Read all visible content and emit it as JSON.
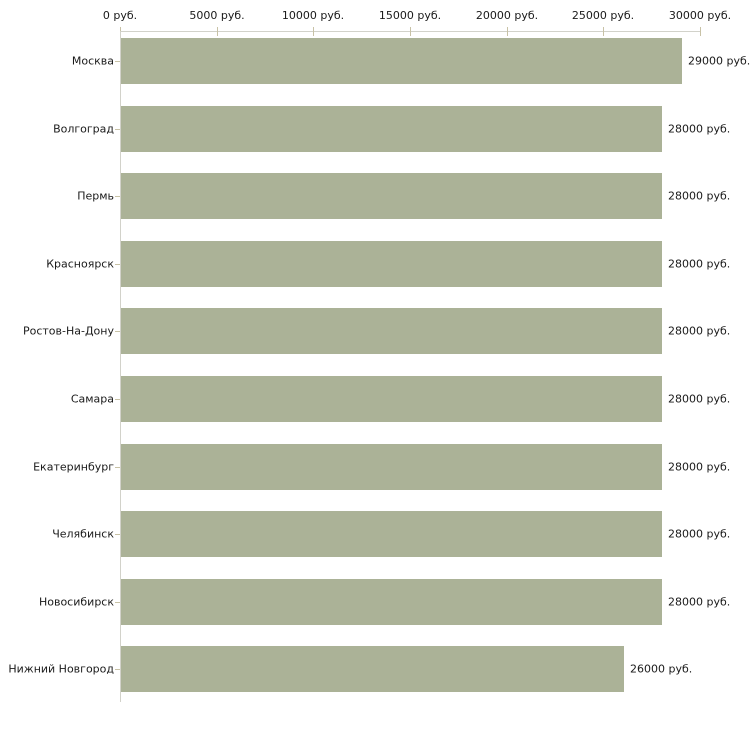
{
  "chart_data": {
    "type": "bar",
    "orientation": "horizontal",
    "title": "",
    "categories": [
      "Москва",
      "Волгоград",
      "Пермь",
      "Красноярск",
      "Ростов-На-Дону",
      "Самара",
      "Екатеринбург",
      "Челябинск",
      "Новосибирск",
      "Нижний Новгород"
    ],
    "values": [
      29000,
      28000,
      28000,
      28000,
      28000,
      28000,
      28000,
      28000,
      28000,
      26000
    ],
    "value_labels": [
      "29000 руб.",
      "28000 руб.",
      "28000 руб.",
      "28000 руб.",
      "28000 руб.",
      "28000 руб.",
      "28000 руб.",
      "28000 руб.",
      "28000 руб.",
      "26000 руб."
    ],
    "x_axis": {
      "position": "top",
      "min": 0,
      "max": 30000,
      "ticks": [
        0,
        5000,
        10000,
        15000,
        20000,
        25000,
        30000
      ],
      "tick_labels": [
        "0 руб.",
        "5000 руб.",
        "10000 руб.",
        "15000 руб.",
        "20000 руб.",
        "25000 руб.",
        "30000 руб."
      ]
    },
    "legend": "none",
    "grid": "off",
    "colors": {
      "bar": "#abb297",
      "axis_line": "#d2d2ca",
      "tick": "#c8c2a6",
      "text": "#1a1a1a",
      "background": "#ffffff"
    }
  }
}
